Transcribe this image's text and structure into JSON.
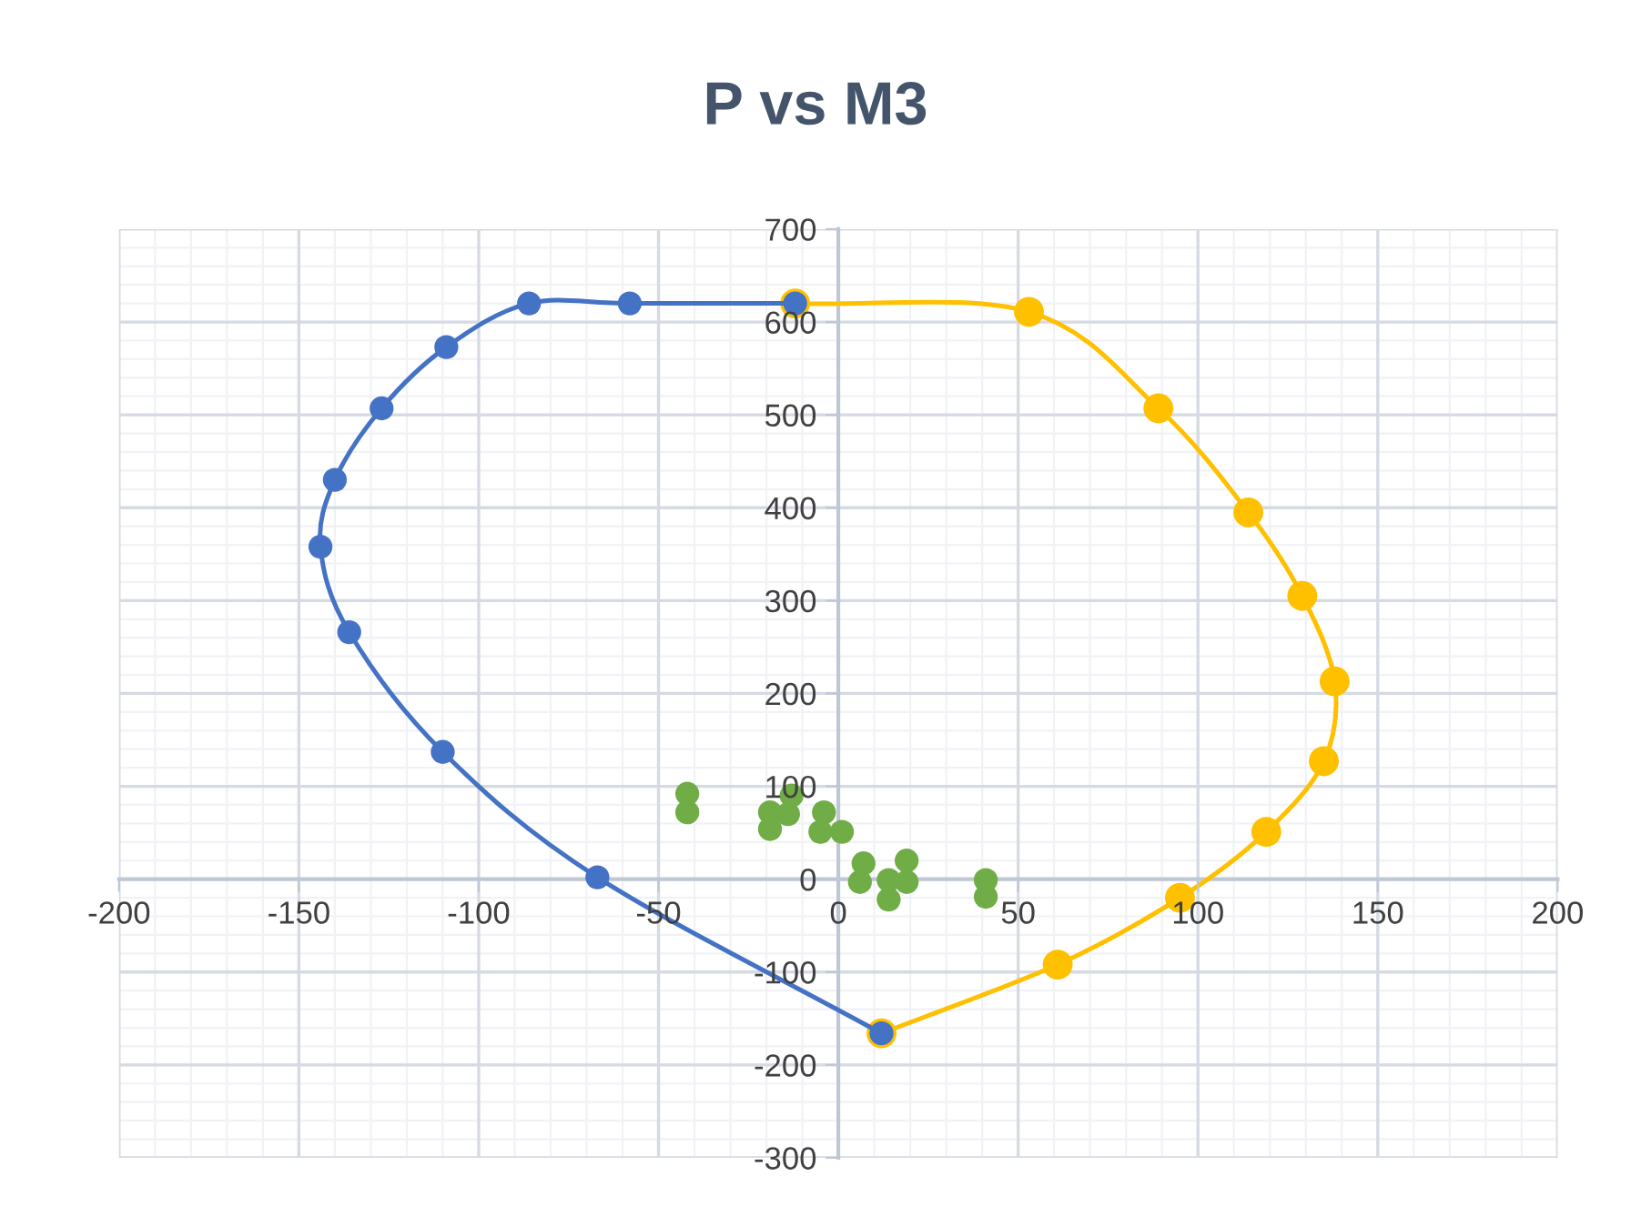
{
  "chart_data": {
    "type": "scatter",
    "title": "P vs M3",
    "series": [
      {
        "type": "line",
        "color": "#ffc000",
        "x": [
          -12,
          53,
          89,
          114,
          129,
          138,
          135,
          119,
          95,
          61,
          12
        ],
        "values": [
          620,
          611,
          507,
          395,
          305,
          213,
          127,
          51,
          -20,
          -92,
          -166
        ]
      },
      {
        "type": "line",
        "color": "#4472c4",
        "x": [
          12,
          -67,
          -110,
          -136,
          -144,
          -140,
          -127,
          -109,
          -86,
          -58,
          -12
        ],
        "values": [
          -166,
          2,
          137,
          266,
          358,
          430,
          507,
          573,
          620,
          620,
          620
        ]
      },
      {
        "color": "#70ad47",
        "x": [
          -42,
          -42,
          -19,
          -19,
          -13,
          -14,
          -4,
          -5,
          1,
          7,
          6,
          14,
          14,
          19,
          19,
          41,
          41
        ],
        "values": [
          92,
          72,
          72,
          54,
          90,
          70,
          72,
          51,
          51,
          17,
          -3,
          -1,
          -22,
          20,
          -3,
          -1,
          -19
        ]
      }
    ],
    "xlim": [
      -200,
      200
    ],
    "xticks": [
      -200,
      -150,
      -100,
      -50,
      0,
      50,
      100,
      150,
      200
    ],
    "ylim": [
      -300,
      700
    ],
    "yticks": [
      -300,
      -200,
      -100,
      0,
      100,
      200,
      300,
      400,
      500,
      600,
      700
    ],
    "grid": true,
    "marker": "circle"
  }
}
